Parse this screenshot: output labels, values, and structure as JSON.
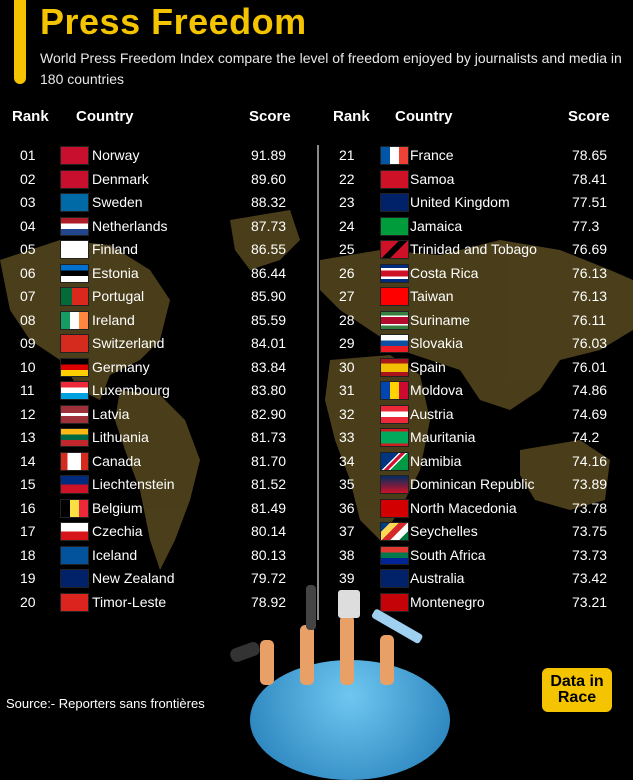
{
  "header": {
    "title": "Press Freedom",
    "subtitle": "World Press Freedom Index compare the level of freedom enjoyed by journalists and media in 180 countries"
  },
  "columns": {
    "rank": "Rank",
    "country": "Country",
    "score": "Score"
  },
  "rankings_left": [
    {
      "rank": "01",
      "country": "Norway",
      "score": "91.89",
      "flag": "norway"
    },
    {
      "rank": "02",
      "country": "Denmark",
      "score": "89.60",
      "flag": "denmark"
    },
    {
      "rank": "03",
      "country": "Sweden",
      "score": "88.32",
      "flag": "sweden"
    },
    {
      "rank": "04",
      "country": "Netherlands",
      "score": "87.73",
      "flag": "netherlands"
    },
    {
      "rank": "05",
      "country": "Finland",
      "score": "86.55",
      "flag": "finland"
    },
    {
      "rank": "06",
      "country": "Estonia",
      "score": "86.44",
      "flag": "estonia"
    },
    {
      "rank": "07",
      "country": "Portugal",
      "score": "85.90",
      "flag": "portugal"
    },
    {
      "rank": "08",
      "country": "Ireland",
      "score": "85.59",
      "flag": "ireland"
    },
    {
      "rank": "09",
      "country": "Switzerland",
      "score": "84.01",
      "flag": "switzerland"
    },
    {
      "rank": "10",
      "country": "Germany",
      "score": "83.84",
      "flag": "germany"
    },
    {
      "rank": "11",
      "country": "Luxembourg",
      "score": "83.80",
      "flag": "luxembourg"
    },
    {
      "rank": "12",
      "country": "Latvia",
      "score": "82.90",
      "flag": "latvia"
    },
    {
      "rank": "13",
      "country": "Lithuania",
      "score": "81.73",
      "flag": "lithuania"
    },
    {
      "rank": "14",
      "country": "Canada",
      "score": "81.70",
      "flag": "canada"
    },
    {
      "rank": "15",
      "country": "Liechtenstein",
      "score": "81.52",
      "flag": "liechtenstein"
    },
    {
      "rank": "16",
      "country": "Belgium",
      "score": "81.49",
      "flag": "belgium"
    },
    {
      "rank": "17",
      "country": "Czechia",
      "score": "80.14",
      "flag": "czechia"
    },
    {
      "rank": "18",
      "country": "Iceland",
      "score": "80.13",
      "flag": "iceland"
    },
    {
      "rank": "19",
      "country": "New Zealand",
      "score": "79.72",
      "flag": "new-zealand"
    },
    {
      "rank": "20",
      "country": "Timor-Leste",
      "score": "78.92",
      "flag": "timor-leste"
    }
  ],
  "rankings_right": [
    {
      "rank": "21",
      "country": "France",
      "score": "78.65",
      "flag": "france"
    },
    {
      "rank": "22",
      "country": "Samoa",
      "score": "78.41",
      "flag": "samoa"
    },
    {
      "rank": "23",
      "country": "United Kingdom",
      "score": "77.51",
      "flag": "united-kingdom"
    },
    {
      "rank": "24",
      "country": "Jamaica",
      "score": "77.3",
      "flag": "jamaica"
    },
    {
      "rank": "25",
      "country": "Trinidad and Tobago",
      "score": "76.69",
      "flag": "trinidad"
    },
    {
      "rank": "26",
      "country": "Costa Rica",
      "score": "76.13",
      "flag": "costa-rica"
    },
    {
      "rank": "27",
      "country": "Taiwan",
      "score": "76.13",
      "flag": "taiwan"
    },
    {
      "rank": "28",
      "country": "Suriname",
      "score": "76.11",
      "flag": "suriname"
    },
    {
      "rank": "29",
      "country": "Slovakia",
      "score": "76.03",
      "flag": "slovakia"
    },
    {
      "rank": "30",
      "country": "Spain",
      "score": "76.01",
      "flag": "spain"
    },
    {
      "rank": "31",
      "country": "Moldova",
      "score": "74.86",
      "flag": "moldova"
    },
    {
      "rank": "32",
      "country": "Austria",
      "score": "74.69",
      "flag": "austria"
    },
    {
      "rank": "33",
      "country": "Mauritania",
      "score": "74.2",
      "flag": "mauritania"
    },
    {
      "rank": "34",
      "country": "Namibia",
      "score": "74.16",
      "flag": "namibia"
    },
    {
      "rank": "35",
      "country": "Dominican Republic",
      "score": "73.89",
      "flag": "dominican-republic"
    },
    {
      "rank": "36",
      "country": "North Macedonia",
      "score": "73.78",
      "flag": "north-macedonia"
    },
    {
      "rank": "37",
      "country": "Seychelles",
      "score": "73.75",
      "flag": "seychelles"
    },
    {
      "rank": "38",
      "country": "South Africa",
      "score": "73.73",
      "flag": "south-africa"
    },
    {
      "rank": "39",
      "country": "Australia",
      "score": "73.42",
      "flag": "australia"
    },
    {
      "rank": "",
      "country": "Montenegro",
      "score": "73.21",
      "flag": "montenegro"
    }
  ],
  "footer": {
    "source": "Source:-  Reporters sans frontières"
  },
  "logo": {
    "line1": "Data in",
    "line2": "Race"
  },
  "colors": {
    "accent": "#f5c400",
    "background": "#000000",
    "map": "#5a4a1e"
  }
}
